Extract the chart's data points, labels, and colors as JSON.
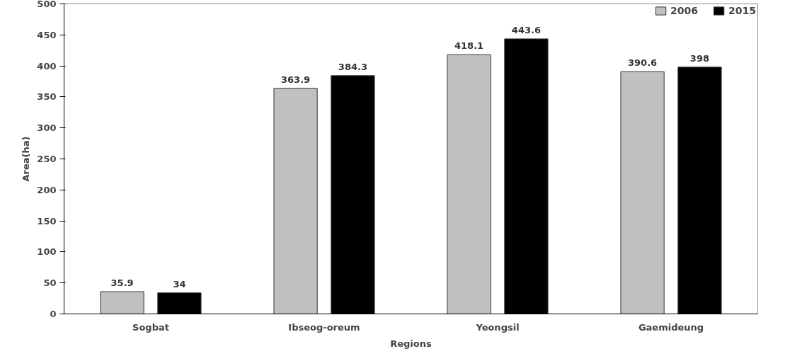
{
  "chart_data": {
    "type": "bar",
    "xlabel": "Regions",
    "ylabel": "Area(ha)",
    "categories": [
      "Sogbat",
      "Ibseog-oreum",
      "Yeongsil",
      "Gaemideung"
    ],
    "series": [
      {
        "name": "2006",
        "color": "#c0c0c0",
        "values": [
          35.9,
          363.9,
          418.1,
          390.6
        ]
      },
      {
        "name": "2015",
        "color": "#000000",
        "values": [
          34,
          384.3,
          443.6,
          398
        ]
      }
    ],
    "ylim": [
      0,
      500
    ],
    "yticks": [
      0,
      50,
      100,
      150,
      200,
      250,
      300,
      350,
      400,
      450,
      500
    ],
    "grid": false,
    "legend": "top right",
    "data_labels": true
  }
}
